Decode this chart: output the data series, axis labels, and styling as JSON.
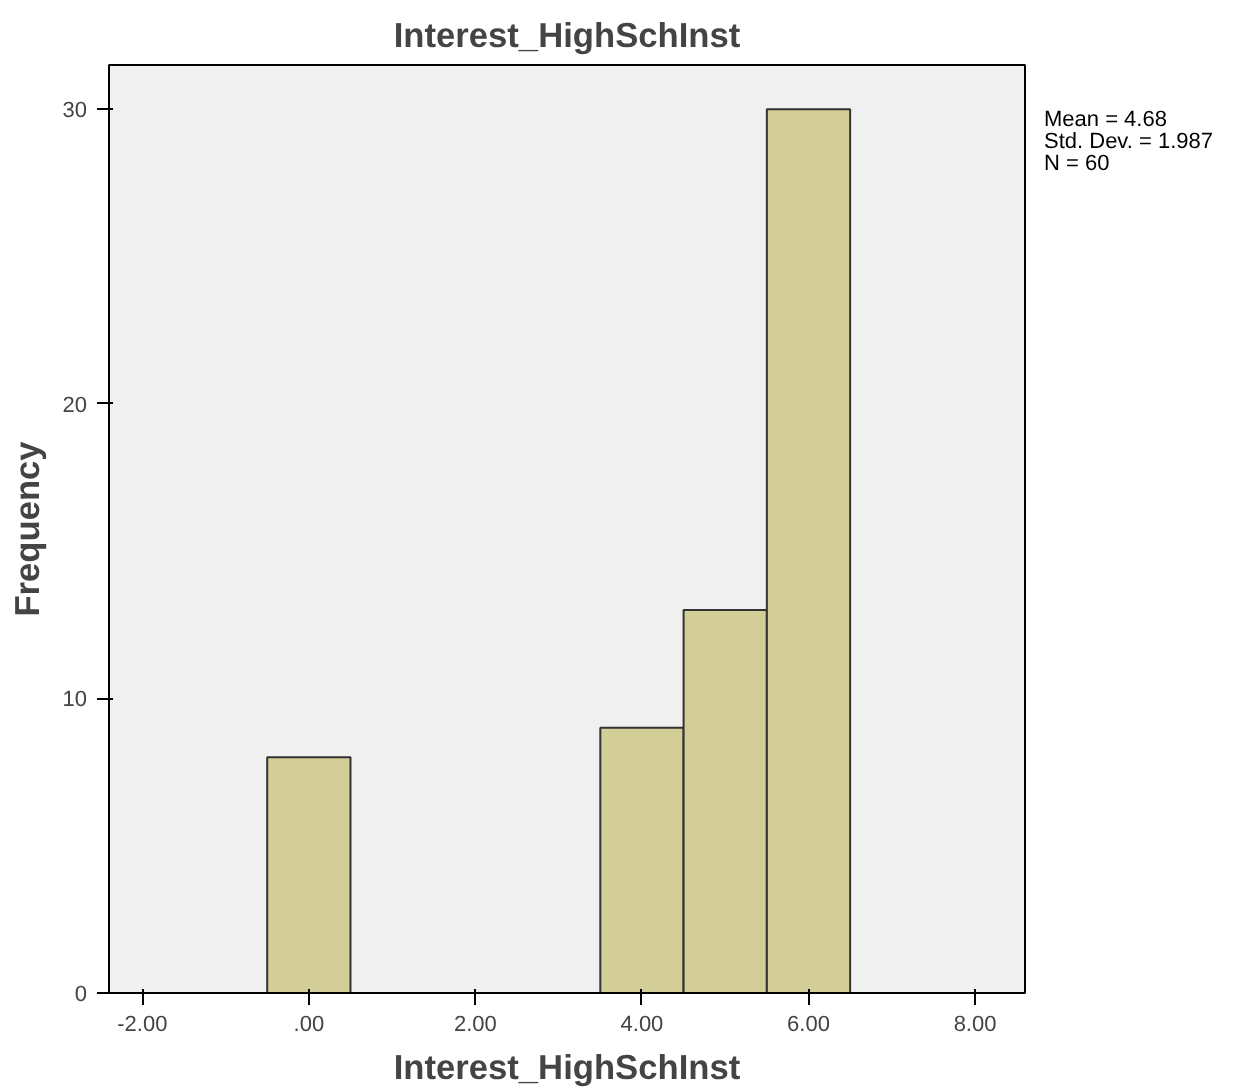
{
  "chart_data": {
    "type": "histogram",
    "title": "Interest_HighSchInst",
    "xlabel": "Interest_HighSchInst",
    "ylabel": "Frequency",
    "bins": [
      -0.5,
      0.5,
      1.5,
      2.5,
      3.5,
      4.5,
      5.5,
      6.5
    ],
    "values": [
      8,
      0,
      0,
      0,
      9,
      13,
      30
    ],
    "color": "#d3ce97",
    "xlim": [
      -2.4,
      8.6
    ],
    "xticks": [
      {
        "value": -2,
        "label": "-2.00"
      },
      {
        "value": 0,
        "label": ".00"
      },
      {
        "value": 2,
        "label": "2.00"
      },
      {
        "value": 4,
        "label": "4.00"
      },
      {
        "value": 6,
        "label": "6.00"
      },
      {
        "value": 8,
        "label": "8.00"
      }
    ],
    "ylim": [
      0,
      31.5
    ],
    "yticks": [
      0,
      10,
      20,
      30
    ],
    "grid": false,
    "annotations": [
      "Mean = 4.68",
      "Std. Dev. = 1.987",
      "N = 60"
    ]
  }
}
